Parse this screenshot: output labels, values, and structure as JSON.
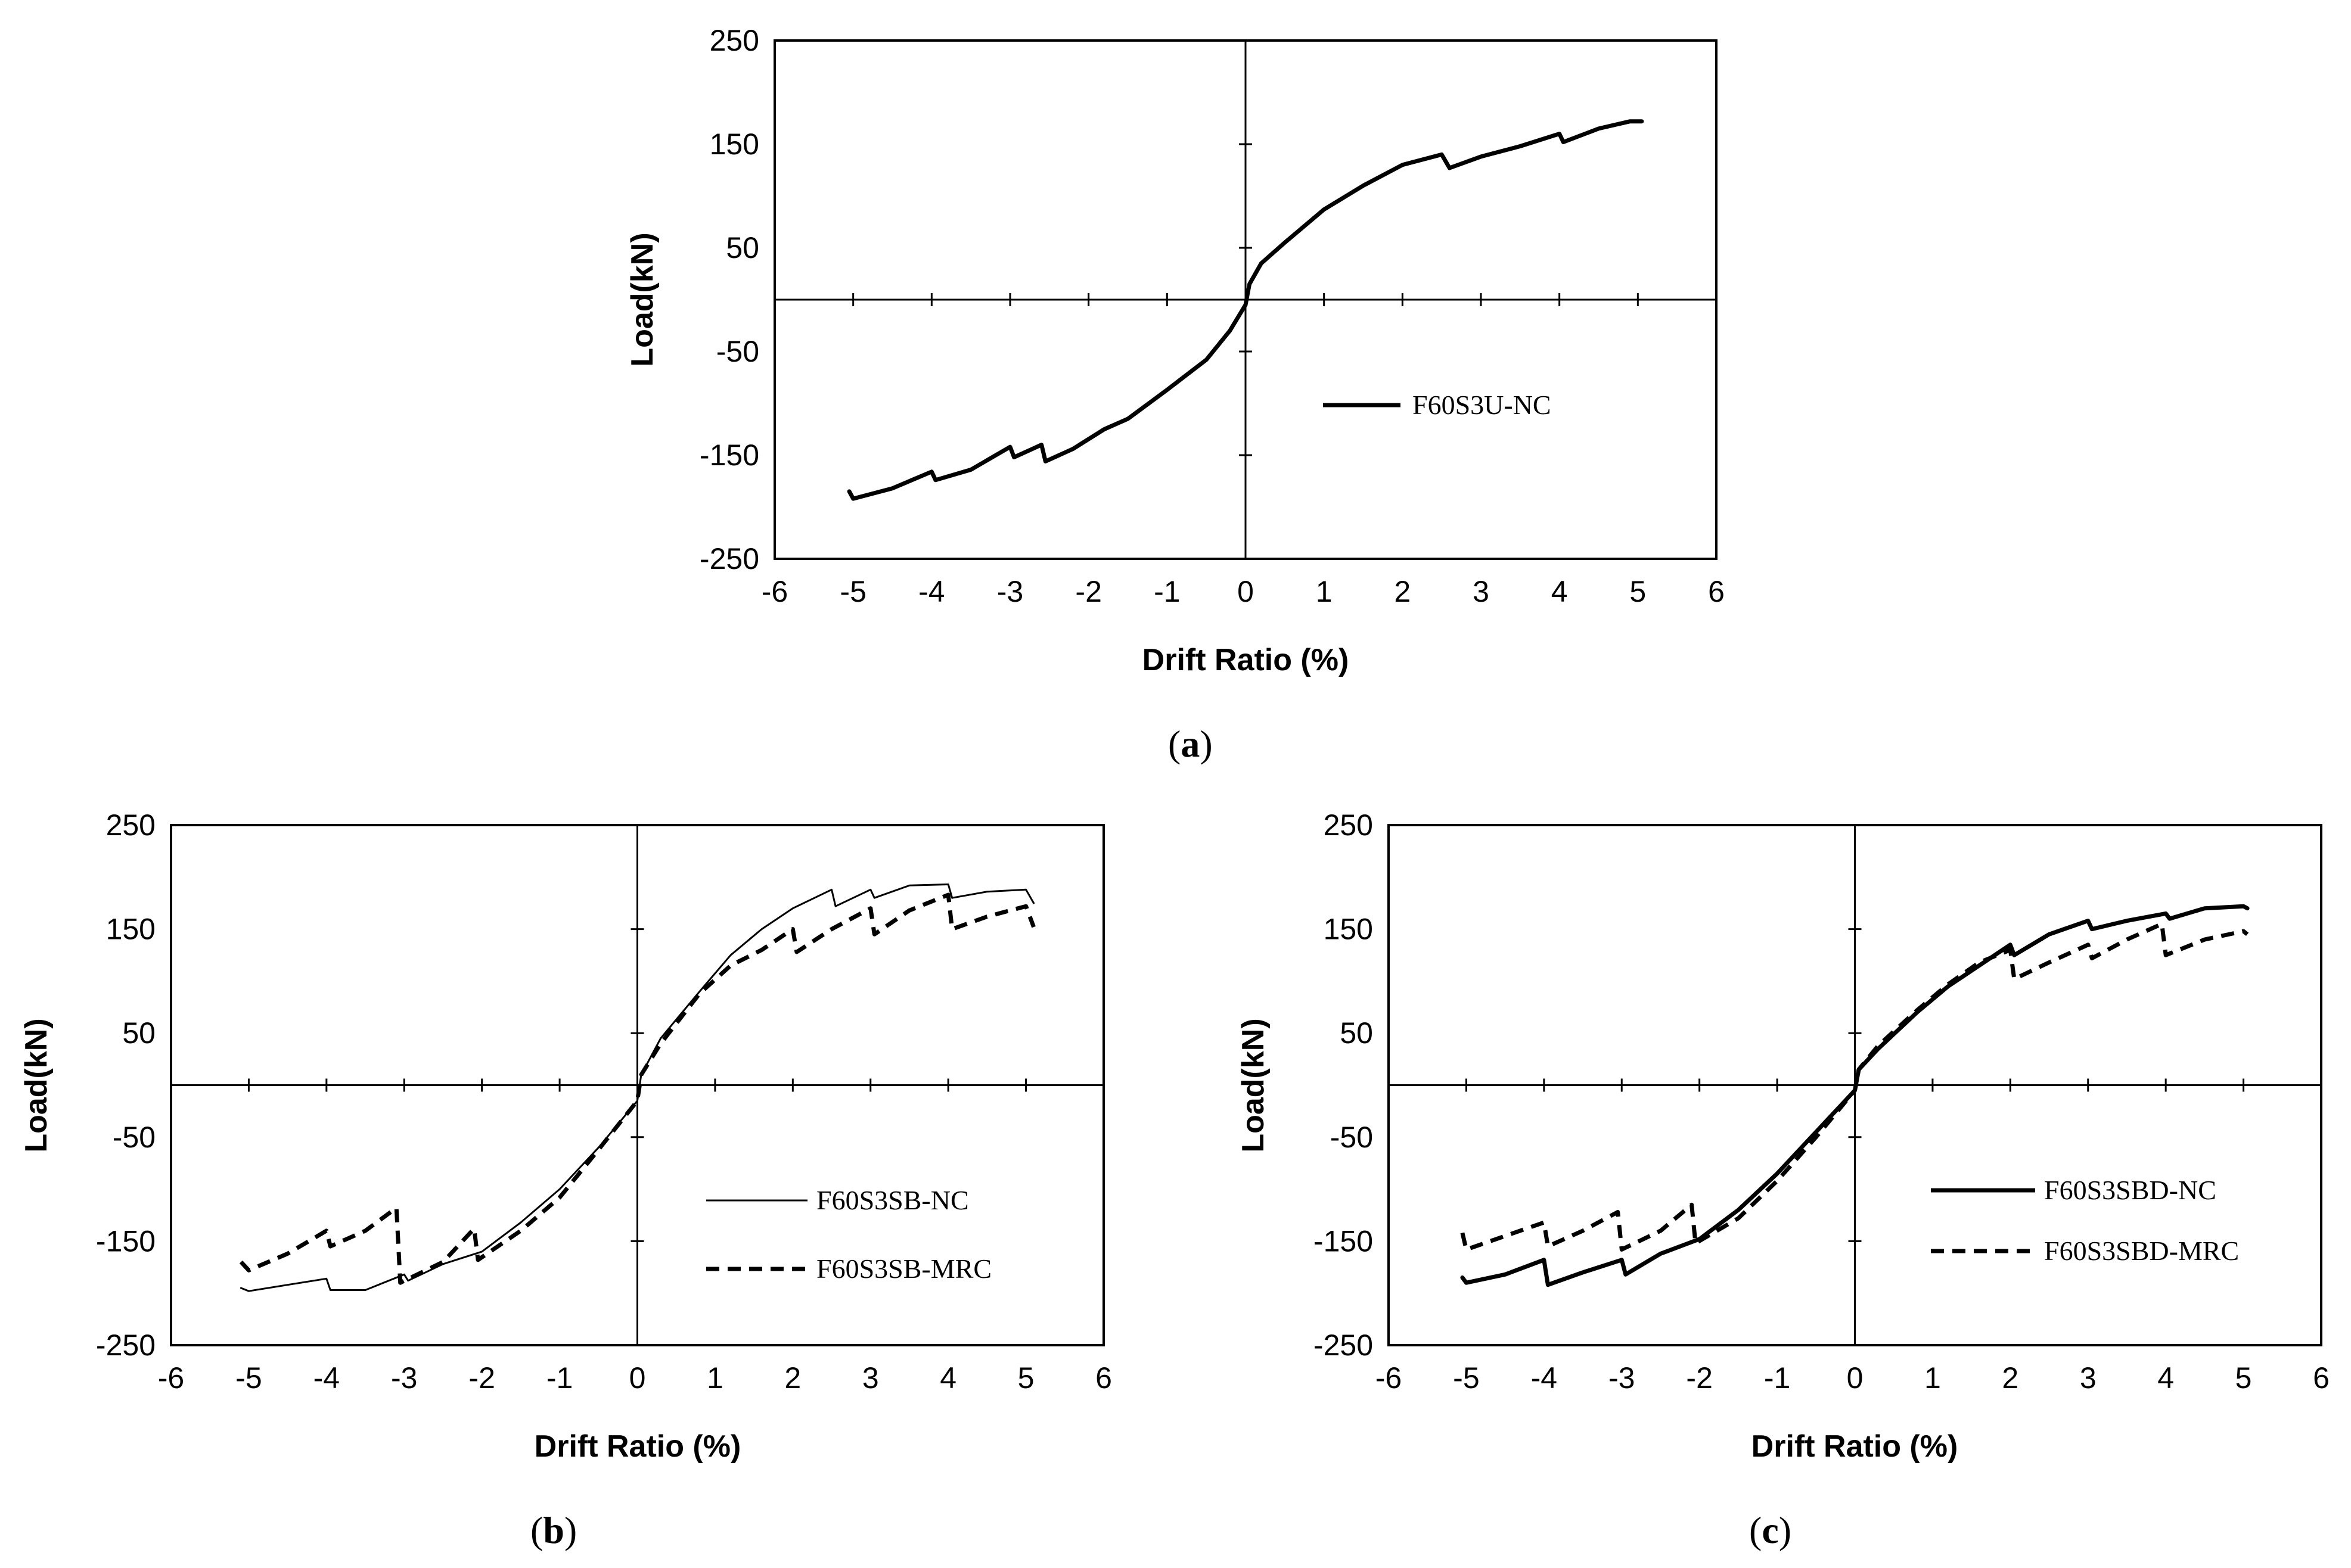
{
  "chart_data": [
    {
      "id": "a",
      "type": "line",
      "caption": "a",
      "xlabel": "Drift Ratio (%)",
      "ylabel": "Load(kN)",
      "xlim": [
        -6,
        6
      ],
      "ylim": [
        -250,
        250
      ],
      "xticks": [
        -6,
        -5,
        -4,
        -3,
        -2,
        -1,
        0,
        1,
        2,
        3,
        4,
        5,
        6
      ],
      "yticks": [
        250,
        150,
        50,
        -50,
        -150,
        -250
      ],
      "grid": false,
      "legend_position": "right-middle",
      "series": [
        {
          "name": "F60S3U-NC",
          "style": "solid-thick",
          "points": [
            [
              -5.05,
              -185
            ],
            [
              -5.0,
              -192
            ],
            [
              -4.5,
              -182
            ],
            [
              -4.0,
              -166
            ],
            [
              -3.95,
              -174
            ],
            [
              -3.5,
              -164
            ],
            [
              -3.0,
              -142
            ],
            [
              -2.95,
              -152
            ],
            [
              -2.6,
              -140
            ],
            [
              -2.55,
              -156
            ],
            [
              -2.2,
              -144
            ],
            [
              -1.8,
              -125
            ],
            [
              -1.5,
              -115
            ],
            [
              -1.0,
              -87
            ],
            [
              -0.5,
              -58
            ],
            [
              -0.2,
              -30
            ],
            [
              0,
              -5
            ],
            [
              0.05,
              15
            ],
            [
              0.2,
              35
            ],
            [
              0.5,
              55
            ],
            [
              1.0,
              87
            ],
            [
              1.5,
              110
            ],
            [
              2.0,
              130
            ],
            [
              2.5,
              140
            ],
            [
              2.6,
              127
            ],
            [
              3.0,
              138
            ],
            [
              3.5,
              148
            ],
            [
              4.0,
              160
            ],
            [
              4.05,
              152
            ],
            [
              4.5,
              165
            ],
            [
              4.9,
              172
            ],
            [
              5.05,
              172
            ]
          ]
        }
      ]
    },
    {
      "id": "b",
      "type": "line",
      "caption": "b",
      "xlabel": "Drift Ratio (%)",
      "ylabel": "Load(kN)",
      "xlim": [
        -6,
        6
      ],
      "ylim": [
        -250,
        250
      ],
      "xticks": [
        -6,
        -5,
        -4,
        -3,
        -2,
        -1,
        0,
        1,
        2,
        3,
        4,
        5,
        6
      ],
      "yticks": [
        250,
        150,
        50,
        -50,
        -150,
        -250
      ],
      "grid": false,
      "legend_position": "right-bottom",
      "series": [
        {
          "name": "F60S3SB-NC",
          "style": "solid-thin",
          "points": [
            [
              -5.1,
              -195
            ],
            [
              -5.0,
              -198
            ],
            [
              -4.5,
              -192
            ],
            [
              -4.0,
              -186
            ],
            [
              -3.95,
              -197
            ],
            [
              -3.5,
              -197
            ],
            [
              -3.0,
              -182
            ],
            [
              -2.95,
              -188
            ],
            [
              -2.5,
              -172
            ],
            [
              -2.0,
              -160
            ],
            [
              -1.5,
              -132
            ],
            [
              -1.0,
              -100
            ],
            [
              -0.5,
              -60
            ],
            [
              0,
              -15
            ],
            [
              0.05,
              10
            ],
            [
              0.3,
              45
            ],
            [
              0.8,
              90
            ],
            [
              1.2,
              125
            ],
            [
              1.6,
              150
            ],
            [
              2.0,
              170
            ],
            [
              2.5,
              188
            ],
            [
              2.55,
              172
            ],
            [
              3.0,
              188
            ],
            [
              3.05,
              180
            ],
            [
              3.5,
              192
            ],
            [
              4.0,
              193
            ],
            [
              4.05,
              180
            ],
            [
              4.5,
              186
            ],
            [
              5.0,
              188
            ],
            [
              5.1,
              175
            ]
          ]
        },
        {
          "name": "F60S3SB-MRC",
          "style": "dashed",
          "points": [
            [
              -5.1,
              -170
            ],
            [
              -5.0,
              -178
            ],
            [
              -4.5,
              -162
            ],
            [
              -4.0,
              -140
            ],
            [
              -3.95,
              -155
            ],
            [
              -3.5,
              -140
            ],
            [
              -3.1,
              -118
            ],
            [
              -3.05,
              -190
            ],
            [
              -2.5,
              -170
            ],
            [
              -2.1,
              -138
            ],
            [
              -2.05,
              -168
            ],
            [
              -1.5,
              -140
            ],
            [
              -1.0,
              -108
            ],
            [
              -0.5,
              -62
            ],
            [
              0,
              -15
            ],
            [
              0.05,
              10
            ],
            [
              0.3,
              40
            ],
            [
              0.8,
              88
            ],
            [
              1.2,
              115
            ],
            [
              1.6,
              130
            ],
            [
              2.0,
              150
            ],
            [
              2.05,
              128
            ],
            [
              2.5,
              150
            ],
            [
              3.0,
              170
            ],
            [
              3.05,
              145
            ],
            [
              3.5,
              168
            ],
            [
              4.0,
              183
            ],
            [
              4.05,
              150
            ],
            [
              4.5,
              162
            ],
            [
              5.0,
              172
            ],
            [
              5.1,
              152
            ]
          ]
        }
      ]
    },
    {
      "id": "c",
      "type": "line",
      "caption": "c",
      "xlabel": "Drift Ratio (%)",
      "ylabel": "Load(kN)",
      "xlim": [
        -6,
        6
      ],
      "ylim": [
        -250,
        250
      ],
      "xticks": [
        -6,
        -5,
        -4,
        -3,
        -2,
        -1,
        0,
        1,
        2,
        3,
        4,
        5,
        6
      ],
      "yticks": [
        250,
        150,
        50,
        -50,
        -150,
        -250
      ],
      "grid": false,
      "legend_position": "right-bottom",
      "series": [
        {
          "name": "F60S3SBD-NC",
          "style": "solid-thick",
          "points": [
            [
              -5.05,
              -185
            ],
            [
              -5.0,
              -190
            ],
            [
              -4.5,
              -182
            ],
            [
              -4.0,
              -168
            ],
            [
              -3.95,
              -192
            ],
            [
              -3.5,
              -180
            ],
            [
              -3.0,
              -168
            ],
            [
              -2.95,
              -182
            ],
            [
              -2.5,
              -162
            ],
            [
              -2.0,
              -148
            ],
            [
              -1.5,
              -120
            ],
            [
              -1.0,
              -85
            ],
            [
              -0.5,
              -45
            ],
            [
              0,
              -5
            ],
            [
              0.05,
              15
            ],
            [
              0.3,
              35
            ],
            [
              0.8,
              70
            ],
            [
              1.2,
              95
            ],
            [
              1.6,
              115
            ],
            [
              2.0,
              135
            ],
            [
              2.05,
              125
            ],
            [
              2.5,
              145
            ],
            [
              3.0,
              158
            ],
            [
              3.05,
              150
            ],
            [
              3.5,
              158
            ],
            [
              4.0,
              165
            ],
            [
              4.05,
              160
            ],
            [
              4.5,
              170
            ],
            [
              5.0,
              172
            ],
            [
              5.05,
              170
            ]
          ]
        },
        {
          "name": "F60S3SBD-MRC",
          "style": "dashed",
          "points": [
            [
              -5.05,
              -142
            ],
            [
              -5.0,
              -158
            ],
            [
              -4.5,
              -145
            ],
            [
              -4.0,
              -132
            ],
            [
              -3.95,
              -155
            ],
            [
              -3.5,
              -140
            ],
            [
              -3.05,
              -122
            ],
            [
              -3.0,
              -158
            ],
            [
              -2.5,
              -140
            ],
            [
              -2.1,
              -115
            ],
            [
              -2.05,
              -152
            ],
            [
              -1.5,
              -128
            ],
            [
              -1.0,
              -92
            ],
            [
              -0.5,
              -50
            ],
            [
              0,
              -5
            ],
            [
              0.05,
              15
            ],
            [
              0.3,
              38
            ],
            [
              0.8,
              72
            ],
            [
              1.2,
              97
            ],
            [
              1.6,
              118
            ],
            [
              2.0,
              130
            ],
            [
              2.05,
              102
            ],
            [
              2.5,
              118
            ],
            [
              3.0,
              135
            ],
            [
              3.05,
              122
            ],
            [
              3.5,
              140
            ],
            [
              3.95,
              155
            ],
            [
              4.0,
              125
            ],
            [
              4.5,
              140
            ],
            [
              5.0,
              148
            ],
            [
              5.05,
              145
            ]
          ]
        }
      ]
    }
  ]
}
